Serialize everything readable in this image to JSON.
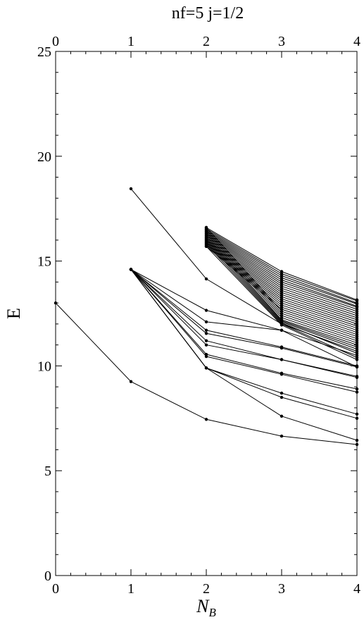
{
  "chart_data": {
    "type": "line",
    "title": "nf=5   j=1/2",
    "xlabel": "N",
    "xlabel_subscript": "B",
    "ylabel": "E",
    "xlim": [
      0,
      4
    ],
    "ylim": [
      0,
      25
    ],
    "x_ticks": [
      "0",
      "1",
      "2",
      "3",
      "4"
    ],
    "top_x_ticks": [
      "0",
      "1",
      "2",
      "3",
      "4"
    ],
    "y_ticks": [
      "0",
      "5",
      "10",
      "15",
      "20",
      "25"
    ],
    "grid": false,
    "legend": "none",
    "line_color": "#000000",
    "series": [
      {
        "x": [
          0,
          1,
          2,
          3,
          4
        ],
        "y": [
          13.0,
          9.25,
          7.45,
          6.65,
          6.25
        ]
      },
      {
        "x": [
          1,
          2,
          3,
          4
        ],
        "y": [
          18.45,
          14.15,
          12.0,
          10.7
        ]
      },
      {
        "x": [
          1,
          2,
          3,
          4
        ],
        "y": [
          14.6,
          12.65,
          11.7,
          10.5
        ]
      },
      {
        "x": [
          1,
          2,
          3,
          4
        ],
        "y": [
          14.6,
          12.1,
          11.7,
          9.95
        ]
      },
      {
        "x": [
          1,
          2,
          3,
          4
        ],
        "y": [
          14.6,
          11.7,
          10.9,
          10.0
        ]
      },
      {
        "x": [
          1,
          2,
          3,
          4
        ],
        "y": [
          14.6,
          11.55,
          10.85,
          9.95
        ]
      },
      {
        "x": [
          1,
          2,
          3,
          4
        ],
        "y": [
          14.6,
          11.2,
          10.3,
          9.5
        ]
      },
      {
        "x": [
          1,
          2,
          3,
          4
        ],
        "y": [
          14.6,
          11.0,
          10.3,
          9.45
        ]
      },
      {
        "x": [
          1,
          2,
          3,
          4
        ],
        "y": [
          14.6,
          10.55,
          9.65,
          8.9
        ]
      },
      {
        "x": [
          1,
          2,
          3,
          4
        ],
        "y": [
          14.6,
          10.45,
          9.6,
          8.75
        ]
      },
      {
        "x": [
          1,
          2,
          3,
          4
        ],
        "y": [
          14.6,
          9.9,
          8.7,
          7.7
        ]
      },
      {
        "x": [
          1,
          2,
          3,
          4
        ],
        "y": [
          14.6,
          9.9,
          8.5,
          7.5
        ]
      },
      {
        "x": [
          1,
          2,
          3,
          4
        ],
        "y": [
          14.6,
          9.9,
          7.6,
          6.45
        ]
      },
      {
        "x": [
          2,
          3,
          4
        ],
        "y": [
          16.6,
          14.5,
          13.15
        ]
      },
      {
        "x": [
          2,
          3,
          4
        ],
        "y": [
          16.55,
          14.4,
          13.1
        ]
      },
      {
        "x": [
          2,
          3,
          4
        ],
        "y": [
          16.5,
          14.3,
          13.0
        ]
      },
      {
        "x": [
          2,
          3,
          4
        ],
        "y": [
          16.45,
          14.2,
          12.95
        ]
      },
      {
        "x": [
          2,
          3,
          4
        ],
        "y": [
          16.4,
          14.1,
          12.85
        ]
      },
      {
        "x": [
          2,
          3,
          4
        ],
        "y": [
          16.35,
          14.0,
          12.8
        ]
      },
      {
        "x": [
          2,
          3,
          4
        ],
        "y": [
          16.3,
          13.9,
          12.7
        ]
      },
      {
        "x": [
          2,
          3,
          4
        ],
        "y": [
          16.25,
          13.8,
          12.6
        ]
      },
      {
        "x": [
          2,
          3,
          4
        ],
        "y": [
          16.2,
          13.7,
          12.5
        ]
      },
      {
        "x": [
          2,
          3,
          4
        ],
        "y": [
          16.15,
          13.6,
          12.4
        ]
      },
      {
        "x": [
          2,
          3,
          4
        ],
        "y": [
          16.1,
          13.5,
          12.3
        ]
      },
      {
        "x": [
          2,
          3,
          4
        ],
        "y": [
          16.05,
          13.4,
          12.2
        ]
      },
      {
        "x": [
          2,
          3,
          4
        ],
        "y": [
          16.0,
          13.3,
          12.1
        ]
      },
      {
        "x": [
          2,
          3,
          4
        ],
        "y": [
          15.95,
          13.2,
          12.0
        ]
      },
      {
        "x": [
          2,
          3,
          4
        ],
        "y": [
          15.9,
          13.1,
          11.9
        ]
      },
      {
        "x": [
          2,
          3,
          4
        ],
        "y": [
          15.85,
          13.0,
          11.8
        ]
      },
      {
        "x": [
          2,
          3,
          4
        ],
        "y": [
          15.8,
          12.9,
          11.7
        ]
      },
      {
        "x": [
          2,
          3,
          4
        ],
        "y": [
          15.75,
          12.8,
          11.6
        ]
      },
      {
        "x": [
          2,
          3,
          4
        ],
        "y": [
          15.7,
          12.7,
          11.5
        ]
      },
      {
        "x": [
          2,
          3,
          4
        ],
        "y": [
          16.6,
          12.6,
          11.4
        ]
      },
      {
        "x": [
          2,
          3,
          4
        ],
        "y": [
          16.5,
          12.5,
          11.3
        ]
      },
      {
        "x": [
          2,
          3,
          4
        ],
        "y": [
          16.4,
          12.4,
          11.2
        ]
      },
      {
        "x": [
          2,
          3,
          4
        ],
        "y": [
          16.3,
          12.3,
          11.1
        ]
      },
      {
        "x": [
          2,
          3,
          4
        ],
        "y": [
          16.2,
          12.2,
          11.0
        ]
      },
      {
        "x": [
          2,
          3,
          4
        ],
        "y": [
          16.1,
          12.15,
          10.9
        ]
      },
      {
        "x": [
          2,
          3,
          4
        ],
        "y": [
          16.0,
          12.1,
          10.8
        ]
      },
      {
        "x": [
          2,
          3,
          4
        ],
        "y": [
          15.9,
          12.05,
          10.6
        ]
      },
      {
        "x": [
          2,
          3,
          4
        ],
        "y": [
          15.8,
          12.0,
          10.4
        ]
      },
      {
        "x": [
          2,
          3,
          4
        ],
        "y": [
          15.7,
          11.95,
          10.3
        ]
      }
    ]
  }
}
